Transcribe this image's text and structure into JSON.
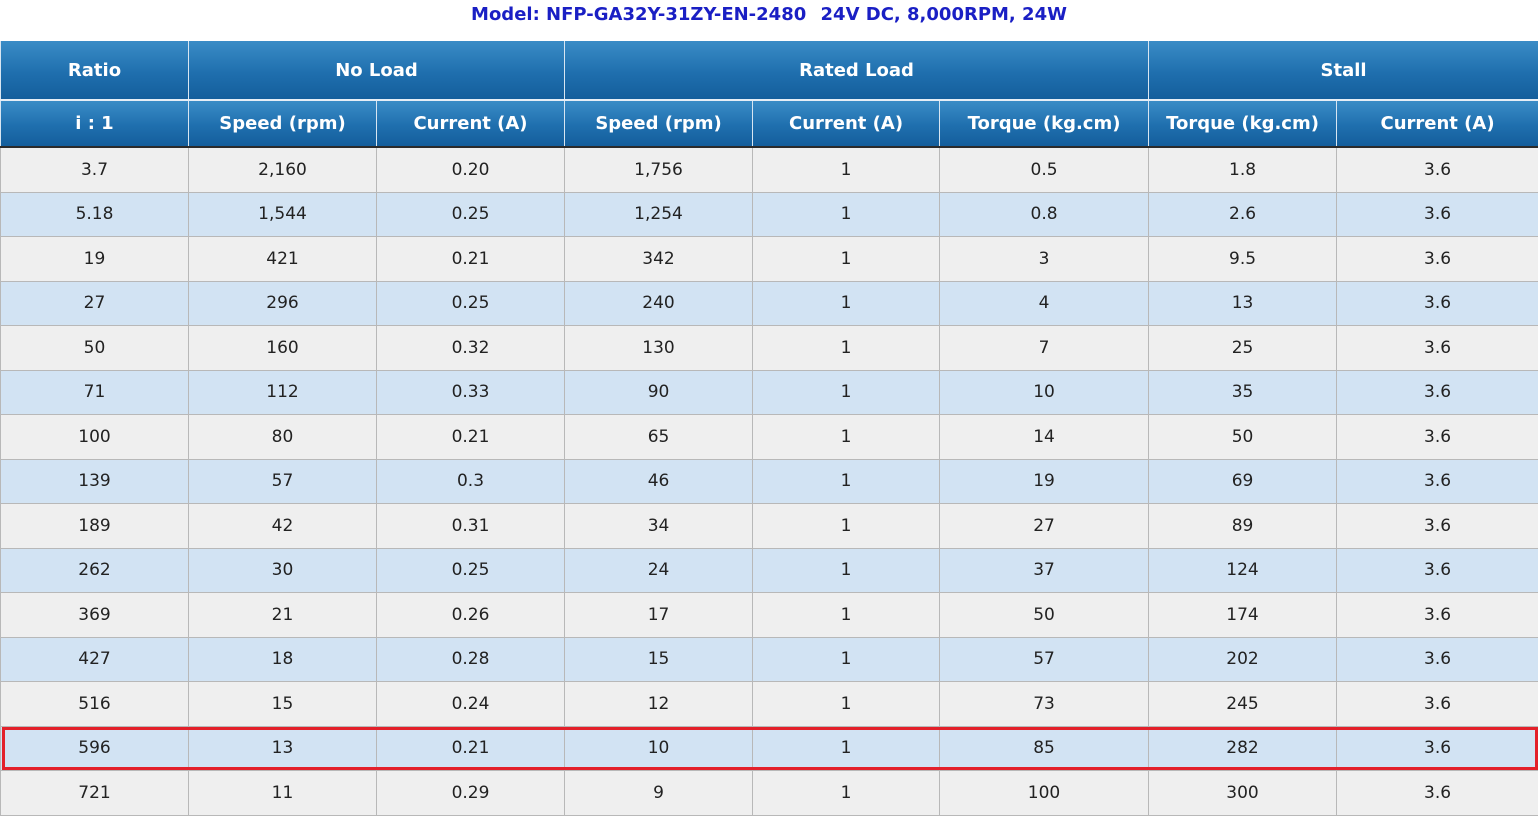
{
  "title": {
    "model": "Model: NFP-GA32Y-31ZY-EN-2480",
    "specs": "24V DC, 8,000RPM, 24W"
  },
  "groups": {
    "ratio": "Ratio",
    "no_load": "No Load",
    "rated_load": "Rated Load",
    "stall": "Stall"
  },
  "subheaders": [
    "i : 1",
    "Speed (rpm)",
    "Current (A)",
    "Speed (rpm)",
    "Current (A)",
    "Torque (kg.cm)",
    "Torque (kg.cm)",
    "Current (A)"
  ],
  "rows": [
    [
      "3.7",
      "2,160",
      "0.20",
      "1,756",
      "1",
      "0.5",
      "1.8",
      "3.6"
    ],
    [
      "5.18",
      "1,544",
      "0.25",
      "1,254",
      "1",
      "0.8",
      "2.6",
      "3.6"
    ],
    [
      "19",
      "421",
      "0.21",
      "342",
      "1",
      "3",
      "9.5",
      "3.6"
    ],
    [
      "27",
      "296",
      "0.25",
      "240",
      "1",
      "4",
      "13",
      "3.6"
    ],
    [
      "50",
      "160",
      "0.32",
      "130",
      "1",
      "7",
      "25",
      "3.6"
    ],
    [
      "71",
      "112",
      "0.33",
      "90",
      "1",
      "10",
      "35",
      "3.6"
    ],
    [
      "100",
      "80",
      "0.21",
      "65",
      "1",
      "14",
      "50",
      "3.6"
    ],
    [
      "139",
      "57",
      "0.3",
      "46",
      "1",
      "19",
      "69",
      "3.6"
    ],
    [
      "189",
      "42",
      "0.31",
      "34",
      "1",
      "27",
      "89",
      "3.6"
    ],
    [
      "262",
      "30",
      "0.25",
      "24",
      "1",
      "37",
      "124",
      "3.6"
    ],
    [
      "369",
      "21",
      "0.26",
      "17",
      "1",
      "50",
      "174",
      "3.6"
    ],
    [
      "427",
      "18",
      "0.28",
      "15",
      "1",
      "57",
      "202",
      "3.6"
    ],
    [
      "516",
      "15",
      "0.24",
      "12",
      "1",
      "73",
      "245",
      "3.6"
    ],
    [
      "596",
      "13",
      "0.21",
      "10",
      "1",
      "85",
      "282",
      "3.6"
    ],
    [
      "721",
      "11",
      "0.29",
      "9",
      "1",
      "100",
      "300",
      "3.6"
    ]
  ],
  "highlighted_row_ratio": "596",
  "colors": {
    "title": "#1a1fc4",
    "header_bg": "#1f6fae",
    "row_odd": "#efefef",
    "row_even": "#d2e3f3",
    "highlight_border": "#e3202a"
  }
}
